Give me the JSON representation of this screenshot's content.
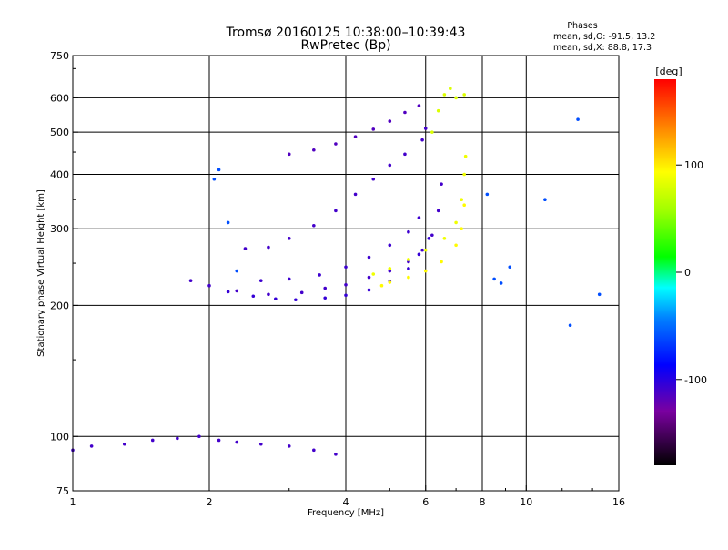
{
  "title": "Tromsø 20160125 10:38:00–10:39:43",
  "subtitle": "RwPretec (Bp)",
  "stats": {
    "heading": "Phases",
    "line_o": "mean, sd,O: -91.5, 13.2",
    "line_x": "mean, sd,X:  88.8, 17.3"
  },
  "colorbar": {
    "label": "[deg]",
    "ticks": [
      "100",
      "0",
      "-100"
    ],
    "tick_values": [
      100,
      0,
      -100
    ],
    "range": [
      -180,
      180
    ]
  },
  "chart_data": {
    "type": "scatter",
    "title": "Tromsø 20160125 10:38:00–10:39:43",
    "subtitle": "RwPretec (Bp)",
    "xlabel": "Frequency [MHz]",
    "ylabel": "Stationary phase Virtual Height [km]",
    "xscale": "log",
    "yscale": "log",
    "xlim": [
      1,
      16
    ],
    "ylim": [
      75,
      750
    ],
    "x_ticks": [
      1,
      2,
      4,
      6,
      8,
      10,
      16
    ],
    "x_tick_labels": [
      "1",
      "2",
      "4",
      "6",
      "8",
      "10",
      "16"
    ],
    "y_ticks": [
      75,
      100,
      200,
      300,
      400,
      500,
      600,
      750
    ],
    "y_tick_labels": [
      "75",
      "100",
      "200",
      "300",
      "400",
      "500",
      "600",
      "750"
    ],
    "grid": true,
    "color_scale": "phase [deg], -180 to 180",
    "series": [
      {
        "points": [
          [
            1.82,
            228
          ],
          [
            2.0,
            222
          ],
          [
            2.3,
            216
          ],
          [
            2.7,
            212
          ],
          [
            3.2,
            214
          ],
          [
            3.6,
            219
          ],
          [
            4.0,
            223
          ],
          [
            4.5,
            232
          ],
          [
            5.0,
            240
          ],
          [
            5.5,
            252
          ],
          [
            5.9,
            268
          ],
          [
            6.2,
            290
          ],
          [
            6.4,
            330
          ],
          [
            6.5,
            380
          ]
        ],
        "phase": -110
      },
      {
        "points": [
          [
            2.2,
            215
          ],
          [
            2.5,
            210
          ],
          [
            2.8,
            207
          ],
          [
            3.1,
            206
          ],
          [
            3.6,
            208
          ],
          [
            4.0,
            211
          ],
          [
            4.5,
            217
          ],
          [
            5.0,
            227
          ],
          [
            5.5,
            243
          ],
          [
            5.8,
            262
          ],
          [
            6.1,
            285
          ]
        ],
        "phase": -105
      },
      {
        "points": [
          [
            2.6,
            228
          ],
          [
            3.0,
            230
          ],
          [
            3.5,
            235
          ],
          [
            4.0,
            245
          ],
          [
            4.5,
            258
          ],
          [
            5.0,
            275
          ],
          [
            5.5,
            295
          ],
          [
            5.8,
            318
          ]
        ],
        "phase": -108
      },
      {
        "points": [
          [
            2.4,
            270
          ],
          [
            2.7,
            272
          ],
          [
            3.0,
            285
          ],
          [
            3.4,
            305
          ],
          [
            3.8,
            330
          ],
          [
            4.2,
            360
          ],
          [
            4.6,
            390
          ],
          [
            5.0,
            420
          ],
          [
            5.4,
            445
          ],
          [
            5.9,
            480
          ],
          [
            6.0,
            510
          ]
        ],
        "phase": -110
      },
      {
        "points": [
          [
            3.0,
            445
          ],
          [
            3.4,
            455
          ],
          [
            3.8,
            470
          ],
          [
            4.2,
            488
          ],
          [
            4.6,
            508
          ],
          [
            5.0,
            530
          ],
          [
            5.4,
            555
          ],
          [
            5.8,
            575
          ]
        ],
        "phase": -115
      },
      {
        "points": [
          [
            4.8,
            222
          ],
          [
            5.0,
            226
          ],
          [
            5.5,
            232
          ],
          [
            6.0,
            240
          ],
          [
            6.5,
            252
          ],
          [
            7.0,
            275
          ],
          [
            7.2,
            300
          ],
          [
            7.3,
            340
          ]
        ],
        "phase": 95
      },
      {
        "points": [
          [
            4.6,
            236
          ],
          [
            5.0,
            243
          ],
          [
            5.5,
            255
          ],
          [
            6.0,
            268
          ],
          [
            6.6,
            285
          ],
          [
            7.0,
            310
          ],
          [
            7.2,
            350
          ],
          [
            7.3,
            400
          ],
          [
            7.35,
            440
          ]
        ],
        "phase": 88
      },
      {
        "points": [
          [
            6.2,
            500
          ],
          [
            6.4,
            560
          ],
          [
            6.6,
            610
          ],
          [
            6.8,
            630
          ],
          [
            7.0,
            600
          ],
          [
            7.3,
            610
          ]
        ],
        "phase": 80
      },
      {
        "points": [
          [
            1.0,
            93
          ],
          [
            1.1,
            95
          ],
          [
            1.3,
            96
          ],
          [
            1.5,
            98
          ],
          [
            1.7,
            99
          ],
          [
            1.9,
            100
          ],
          [
            2.1,
            98
          ],
          [
            2.3,
            97
          ],
          [
            2.6,
            96
          ],
          [
            3.0,
            95
          ],
          [
            3.4,
            93
          ],
          [
            3.8,
            91
          ]
        ],
        "phase": -110
      },
      {
        "points": [
          [
            2.05,
            390
          ],
          [
            2.1,
            410
          ],
          [
            2.2,
            310
          ],
          [
            2.3,
            240
          ],
          [
            8.2,
            360
          ],
          [
            8.5,
            230
          ],
          [
            8.8,
            225
          ],
          [
            9.2,
            245
          ],
          [
            11.0,
            350
          ],
          [
            12.5,
            180
          ],
          [
            13.0,
            535
          ],
          [
            14.5,
            212
          ]
        ],
        "phase": -60
      }
    ]
  }
}
